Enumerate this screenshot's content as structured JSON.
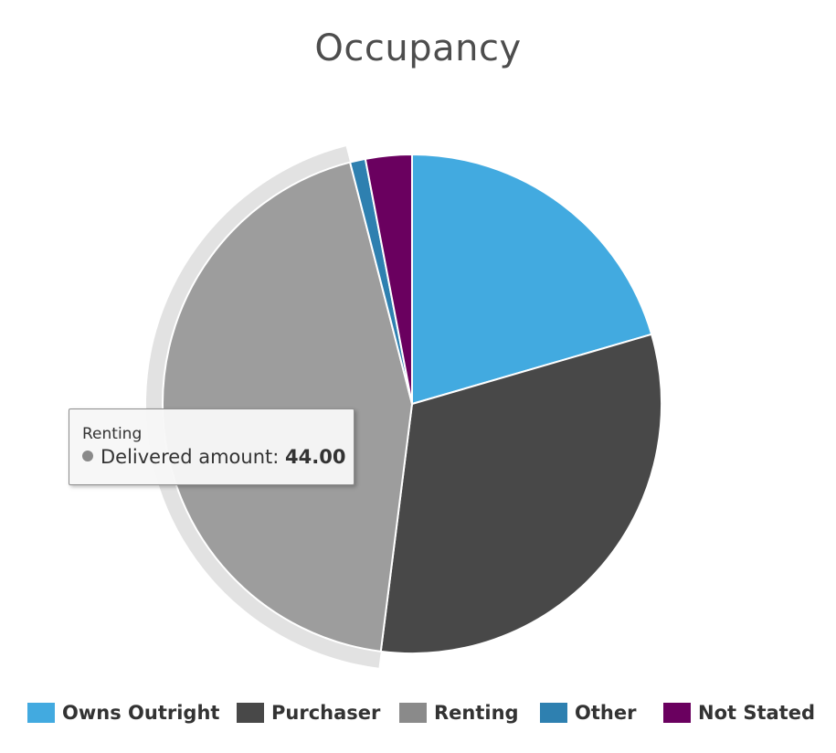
{
  "chart_data": {
    "type": "pie",
    "title": "Occupancy",
    "categories": [
      "Owns Outright",
      "Purchaser",
      "Renting",
      "Other",
      "Not Stated"
    ],
    "values": [
      20.5,
      31.5,
      44.0,
      1.0,
      3.0
    ],
    "colors": [
      "#42aae0",
      "#484848",
      "#9d9d9d",
      "#2e80b0",
      "#6a005f"
    ],
    "legend_colors": [
      "#42aae0",
      "#484848",
      "#8a8a8a",
      "#2e80b0",
      "#6a005f"
    ],
    "highlighted": "Renting",
    "legend_position": "bottom"
  },
  "tooltip": {
    "title": "Renting",
    "label": "Delivered amount:",
    "value": "44.00"
  }
}
